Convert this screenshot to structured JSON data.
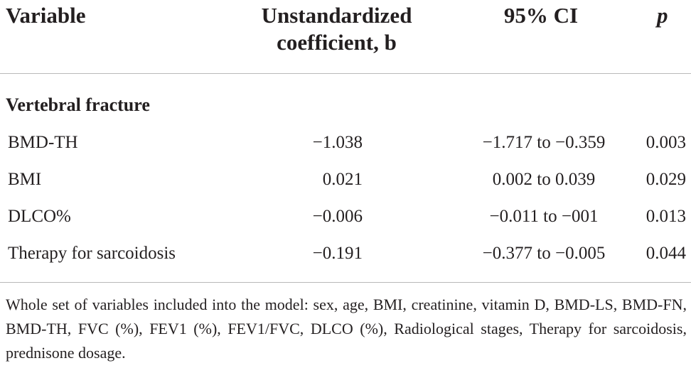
{
  "table": {
    "headers": {
      "variable": "Variable",
      "coefficient_line1": "Unstandardized",
      "coefficient_line2": "coefficient, b",
      "ci": "95% CI",
      "p": "p"
    },
    "section_label": "Vertebral fracture",
    "rows": [
      {
        "variable": "BMD-TH",
        "coefficient": "−1.038",
        "ci": "−1.717 to −0.359",
        "p": "0.003"
      },
      {
        "variable": "BMI",
        "coefficient": "0.021",
        "ci": "0.002 to 0.039",
        "p": "0.029"
      },
      {
        "variable": "DLCO%",
        "coefficient": "−0.006",
        "ci": "−0.011 to −001",
        "p": "0.013"
      },
      {
        "variable": "Therapy for sarcoidosis",
        "coefficient": "−0.191",
        "ci": "−0.377 to −0.005",
        "p": "0.044"
      }
    ],
    "footnote": "Whole set of variables included into the model: sex, age, BMI, creatinine, vitamin D, BMD-LS, BMD-FN, BMD-TH, FVC (%), FEV1 (%), FEV1/FVC, DLCO (%), Radiological stages, Therapy for sarcoidosis, prednisone dosage."
  }
}
